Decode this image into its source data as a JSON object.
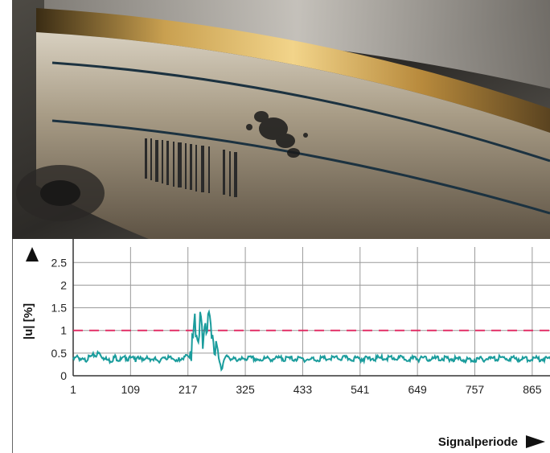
{
  "photo": {
    "description_icon": "bearing-ring-photo-icon"
  },
  "chart_data": {
    "type": "line",
    "xlabel": "Signalperiode",
    "ylabel": "|u| [%]",
    "xlim": [
      1,
      900
    ],
    "ylim": [
      0,
      2.7
    ],
    "x_ticks": [
      1,
      109,
      217,
      325,
      433,
      541,
      649,
      757,
      865
    ],
    "y_ticks": [
      0,
      0.5,
      1,
      1.5,
      2,
      2.5
    ],
    "x_tick_labels": [
      "1",
      "109",
      "217",
      "325",
      "433",
      "541",
      "649",
      "757",
      "865"
    ],
    "y_tick_labels": [
      "0",
      "0.5",
      "1",
      "1.5",
      "2",
      "2.5"
    ],
    "threshold": 1,
    "grid": true,
    "colors": {
      "series": "#1a9c9c",
      "threshold": "#e0245e",
      "grid": "#9a9a9a"
    },
    "series": [
      {
        "x": [
          1,
          10,
          20,
          30,
          40,
          50,
          60,
          70,
          80,
          90,
          100,
          120,
          140,
          160,
          180,
          200,
          210,
          220,
          225,
          230,
          235,
          240,
          245,
          250,
          255,
          260,
          265,
          270,
          275,
          280,
          285,
          290,
          300,
          320,
          350,
          400,
          450,
          500,
          550,
          600,
          650,
          700,
          750,
          800,
          850,
          900
        ],
        "values": [
          0.38,
          0.45,
          0.35,
          0.42,
          0.48,
          0.52,
          0.4,
          0.36,
          0.44,
          0.38,
          0.42,
          0.39,
          0.43,
          0.37,
          0.41,
          0.4,
          0.44,
          0.45,
          0.9,
          1.25,
          1.1,
          1.35,
          1.0,
          1.42,
          1.2,
          1.45,
          1.1,
          0.8,
          0.45,
          0.2,
          0.33,
          0.5,
          0.38,
          0.42,
          0.4,
          0.41,
          0.39,
          0.42,
          0.4,
          0.43,
          0.4,
          0.41,
          0.38,
          0.42,
          0.4,
          0.41
        ]
      }
    ]
  }
}
